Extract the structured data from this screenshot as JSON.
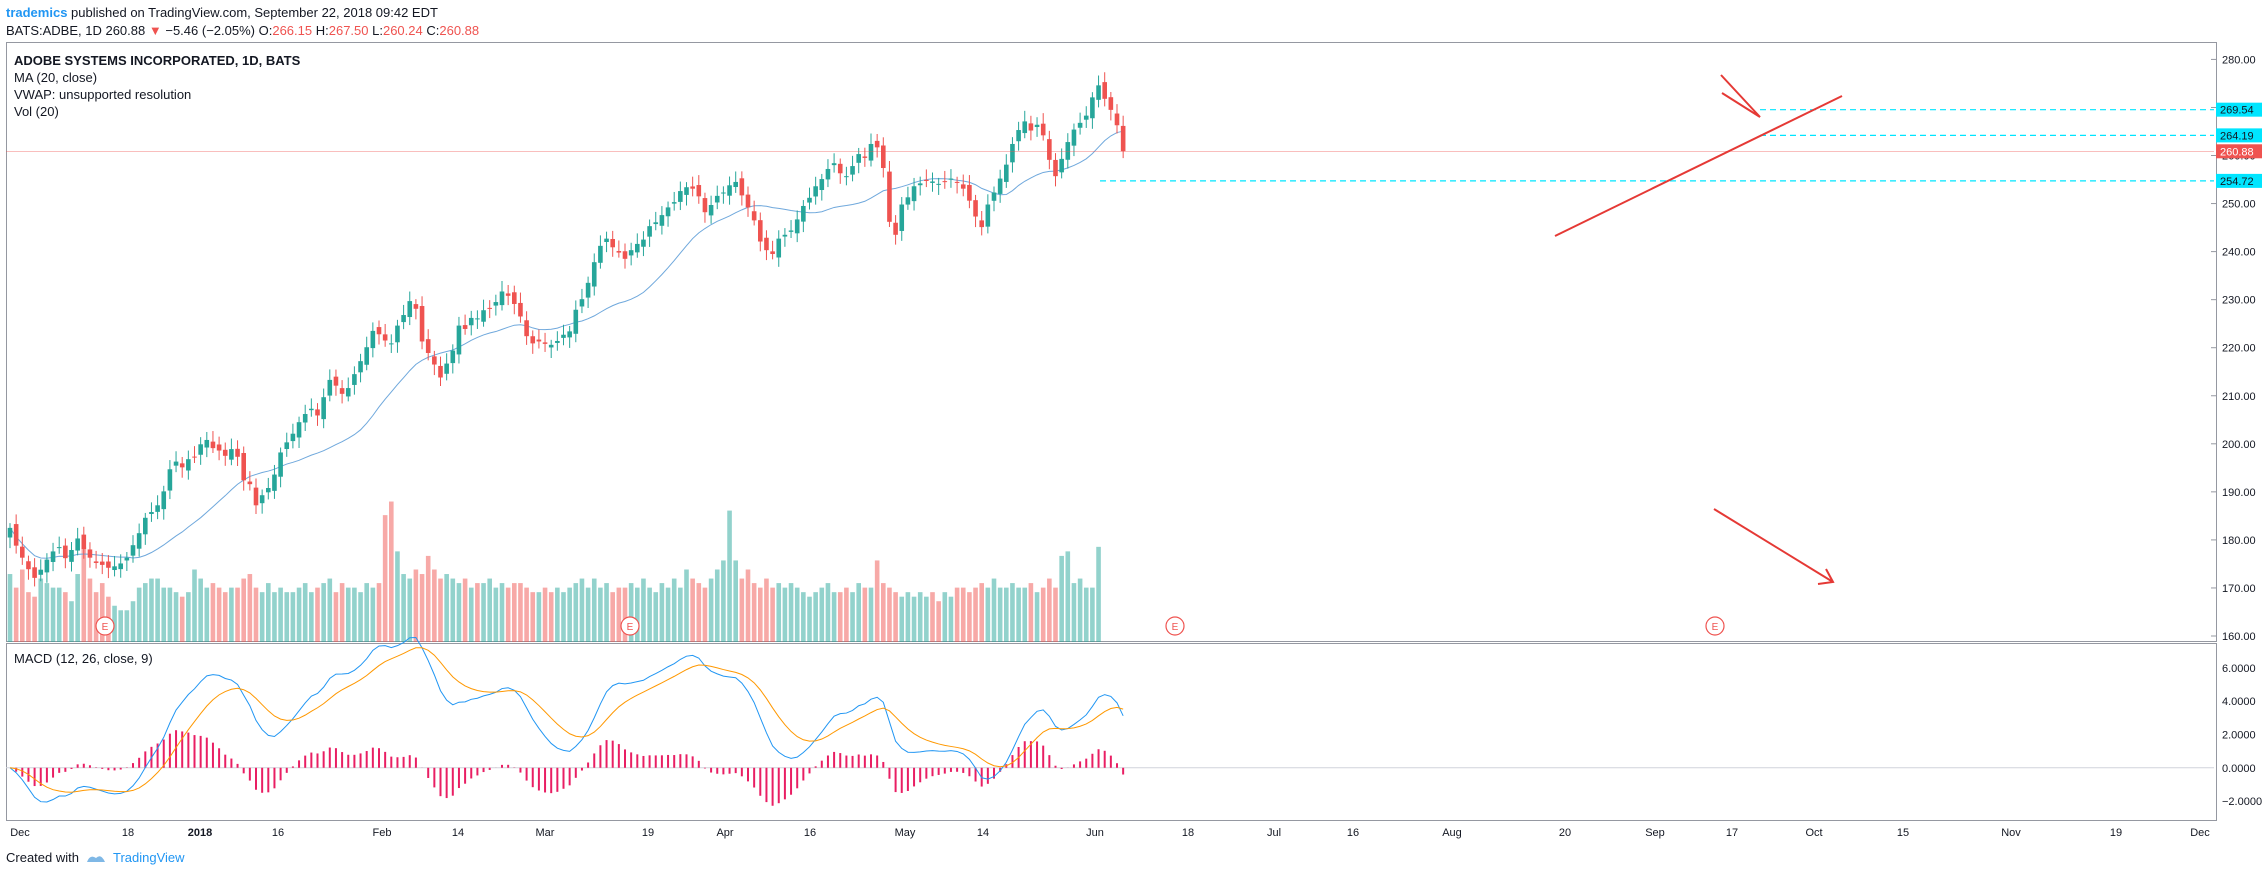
{
  "header": {
    "user": "trademics",
    "published_text": "published on TradingView.com, September 22, 2018 09:42 EDT",
    "symbol": "BATS:ADBE, 1D",
    "last": "260.88",
    "change_arrow": "▼",
    "change": "−5.46 (−2.05%)",
    "o_label": "O:",
    "o": "266.15",
    "h_label": "H:",
    "h": "267.50",
    "l_label": "L:",
    "l": "260.24",
    "c_label": "C:",
    "c": "260.88"
  },
  "legend": {
    "title": "ADOBE SYSTEMS INCORPORATED, 1D, BATS",
    "ma": "MA (20, close)",
    "vwap": "VWAP: unsupported resolution",
    "vol": "Vol (20)",
    "macd": "MACD (12, 26, close, 9)"
  },
  "footer": {
    "created_with": "Created with",
    "brand": "TradingView"
  },
  "colors": {
    "up": "#26a69a",
    "down": "#ef5350",
    "ma": "#6fa8dc",
    "macd": "#2196f3",
    "signal": "#ff9800",
    "hist": "#e91e63",
    "annot": "#e53935",
    "level": "#00e5ff"
  },
  "chart_data": {
    "type": "candlestick",
    "title": "ADOBE SYSTEMS INCORPORATED, 1D, BATS",
    "price_ylim": [
      160,
      283
    ],
    "price_ticks": [
      "280.00",
      "270.00",
      "260.00",
      "250.00",
      "240.00",
      "230.00",
      "220.00",
      "210.00",
      "200.00",
      "190.00",
      "180.00",
      "170.00",
      "160.00"
    ],
    "macd_ylim": [
      -3,
      7
    ],
    "macd_ticks": [
      "6.0000",
      "4.0000",
      "2.0000",
      "0.0000",
      "−2.0000"
    ],
    "x_labels": [
      "Dec",
      "18",
      "2018",
      "16",
      "Feb",
      "14",
      "Mar",
      "19",
      "Apr",
      "16",
      "May",
      "14",
      "Jun",
      "18",
      "Jul",
      "16",
      "Aug",
      "20",
      "Sep",
      "17",
      "Oct",
      "15",
      "Nov",
      "19",
      "Dec"
    ],
    "price_labels": [
      {
        "value": 269.54,
        "text": "269.54"
      },
      {
        "value": 264.19,
        "text": "264.19"
      },
      {
        "value": 260.88,
        "text": "260.88"
      },
      {
        "value": 254.72,
        "text": "254.72"
      }
    ],
    "earnings_marker": "E",
    "closes": [
      182.5,
      178.8,
      176.3,
      173.9,
      172.1,
      173.8,
      175.9,
      177.6,
      178.5,
      176.2,
      177.9,
      180.3,
      178.1,
      176.3,
      175.2,
      174.8,
      174.2,
      174.5,
      175.1,
      176.3,
      178.9,
      181.4,
      184.6,
      185.8,
      187.2,
      190.1,
      194.7,
      196.3,
      195.1,
      196.8,
      197.2,
      199.9,
      200.8,
      199.1,
      198.6,
      197.5,
      198.9,
      197.3,
      192.4,
      191.6,
      187.2,
      189.3,
      190.8,
      193.6,
      198.2,
      200.3,
      202.1,
      204.5,
      206.2,
      207.3,
      205.9,
      209.7,
      213.3,
      212.1,
      210.4,
      211.6,
      214.5,
      217.2,
      220.1,
      223.5,
      222.8,
      221.5,
      220.9,
      224.6,
      226.8,
      229.7,
      228.1,
      221.3,
      218.9,
      216.5,
      213.8,
      216.7,
      219.4,
      224.6,
      223.9,
      226.2,
      226.1,
      227.8,
      228.2,
      229.5,
      231.7,
      230.8,
      229.1,
      226.5,
      222.4,
      220.9,
      221.3,
      220.8,
      220.6,
      221.4,
      222.7,
      223.4,
      227.9,
      230.1,
      233.5,
      237.8,
      241.2,
      242.7,
      240.9,
      239.8,
      238.5,
      240.3,
      241.6,
      242.5,
      245.3,
      246.1,
      247.6,
      249.2,
      250.3,
      252.6,
      253.4,
      253.1,
      251.5,
      248.2,
      249.7,
      251.6,
      252.3,
      253.8,
      254.5,
      251.7,
      249.2,
      246.5,
      242.1,
      240.3,
      239.5,
      242.7,
      243.5,
      244.4,
      246.7,
      249.5,
      251.2,
      253.6,
      255.1,
      257.2,
      258.4,
      256.3,
      255.7,
      257.8,
      260.3,
      259.5,
      262.4,
      261.7,
      257.4,
      246.2,
      243.5,
      249.8,
      251.3,
      253.6,
      254.2,
      254.7,
      254.6,
      254.1,
      254.5,
      255.2,
      254.3,
      253.1,
      250.6,
      247.3,
      245.1,
      249.8,
      252.3,
      255.2,
      258.1,
      262.4,
      265.3,
      267.1,
      265.2,
      266.4,
      264.2,
      259.1,
      255.7,
      259.3,
      262.8,
      265.4,
      266.8,
      268.3,
      272.1,
      274.6,
      271.8,
      269.5,
      266.3,
      260.88
    ],
    "volumes": [
      15,
      12,
      16,
      11,
      10,
      14,
      13,
      12,
      12,
      11,
      9,
      15,
      21,
      14,
      11,
      13,
      10,
      8,
      7,
      7,
      9,
      12,
      13,
      14,
      14,
      12,
      12,
      11,
      10,
      11,
      16,
      14,
      12,
      13,
      12,
      11,
      12,
      12,
      14,
      15,
      12,
      11,
      13,
      11,
      12,
      11,
      11,
      12,
      13,
      11,
      12,
      13,
      14,
      11,
      13,
      12,
      12,
      11,
      13,
      12,
      13,
      28,
      31,
      20,
      15,
      14,
      16,
      15,
      19,
      16,
      14,
      15,
      14,
      13,
      14,
      12,
      13,
      13,
      14,
      12,
      13,
      12,
      13,
      13,
      12,
      11,
      11,
      12,
      11,
      12,
      11,
      12,
      13,
      14,
      12,
      14,
      12,
      13,
      11,
      12,
      12,
      13,
      12,
      14,
      12,
      11,
      13,
      12,
      14,
      12,
      16,
      14,
      13,
      12,
      14,
      16,
      18,
      29,
      18,
      14,
      16,
      13,
      12,
      14,
      12,
      13,
      12,
      13,
      12,
      11,
      10,
      11,
      12,
      13,
      11,
      11,
      12,
      11,
      13,
      12,
      12,
      18,
      13,
      12,
      11,
      10,
      11,
      10,
      11,
      10,
      11,
      9,
      11,
      10,
      12,
      12,
      11,
      12,
      13,
      12,
      14,
      12,
      12,
      13,
      12,
      12,
      13,
      11,
      12,
      14,
      12,
      19,
      20,
      13,
      14,
      12,
      12,
      21
    ]
  }
}
